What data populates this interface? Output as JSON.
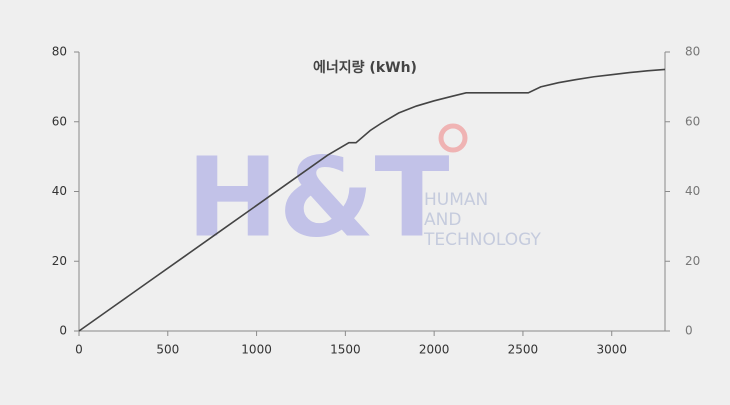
{
  "chart_data": {
    "type": "line",
    "title": "에너지량 (kWh)",
    "x": [
      0,
      200,
      400,
      600,
      800,
      1000,
      1200,
      1400,
      1520,
      1560,
      1640,
      1700,
      1800,
      1900,
      2000,
      2100,
      2180,
      2300,
      2400,
      2530,
      2600,
      2700,
      2800,
      2900,
      3000,
      3100,
      3200,
      3300
    ],
    "series": [
      {
        "name": "에너지량",
        "color": "#444444",
        "values": [
          0,
          7.2,
          14.4,
          21.6,
          28.8,
          36,
          43.2,
          50.4,
          54,
          54,
          57.5,
          59.5,
          62.5,
          64.5,
          66,
          67.3,
          68.3,
          68.3,
          68.3,
          68.3,
          70,
          71.2,
          72.1,
          72.9,
          73.5,
          74.1,
          74.6,
          75
        ]
      }
    ],
    "xlim": [
      0,
      3300
    ],
    "xticks": [
      0,
      500,
      1000,
      1500,
      2000,
      2500,
      3000
    ],
    "ylim": [
      0,
      80
    ],
    "yticks": [
      0,
      20,
      40,
      60,
      80
    ],
    "y2lim": [
      0,
      80
    ],
    "y2ticks": [
      0,
      20,
      40,
      60,
      80
    ]
  },
  "watermark": {
    "logo": "H&T",
    "lines": [
      "HUMAN",
      "AND",
      "TECHNOLOGY"
    ]
  }
}
